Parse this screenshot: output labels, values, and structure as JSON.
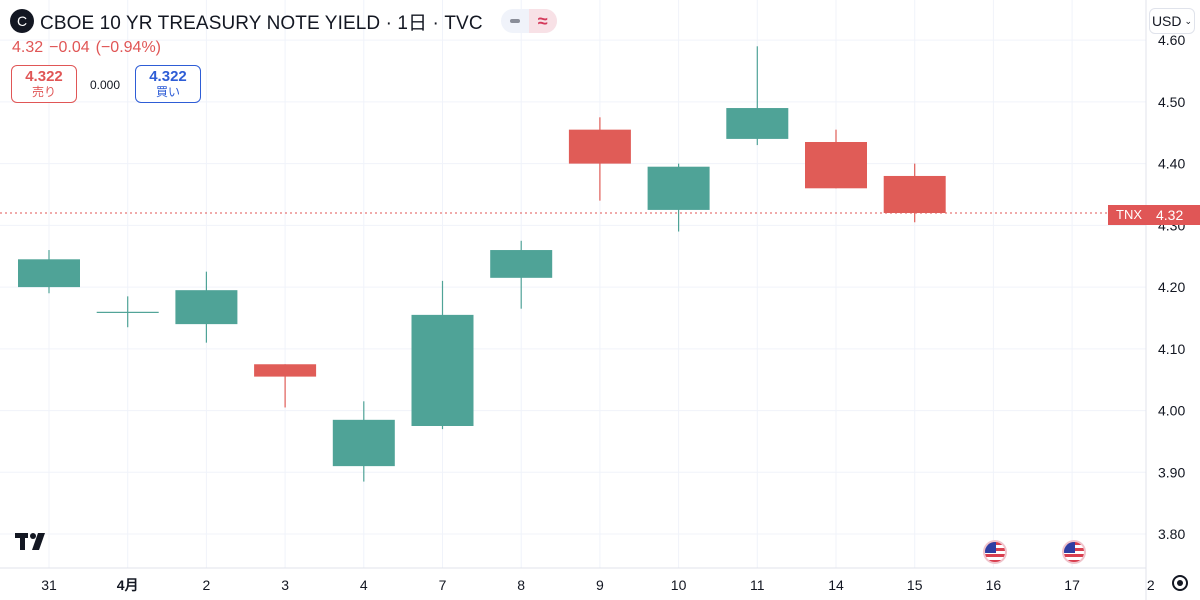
{
  "header": {
    "symbol_icon": "C",
    "title": "CBOE 10 YR TREASURY NOTE YIELD · 1日 · TVC",
    "change_last": "4.32",
    "change_abs": "−0.04",
    "change_pct": "(−0.94%)"
  },
  "trade": {
    "sell_value": "4.322",
    "sell_label": "売り",
    "spread": "0.000",
    "buy_value": "4.322",
    "buy_label": "買い"
  },
  "currency": {
    "label": "USD"
  },
  "price_tag": {
    "symbol": "TNX",
    "price": "4.32"
  },
  "icons": {
    "mode_minus": "minus-icon",
    "mode_approx": "≈",
    "logo": "tradingview-logo",
    "events": "us-flag-icon",
    "settings": "gear-icon",
    "currency_menu": "chevron-down-icon"
  },
  "colors": {
    "up": "#4fa397",
    "down": "#e05c57",
    "last_line": "#e05656"
  },
  "chart_data": {
    "type": "candlestick",
    "x_labels": [
      "31",
      "4月",
      "2",
      "3",
      "4",
      "7",
      "8",
      "9",
      "10",
      "11",
      "14",
      "15",
      "16",
      "17",
      "2"
    ],
    "y_ticks": [
      "4.60",
      "4.50",
      "4.40",
      "4.30",
      "4.20",
      "4.10",
      "4.00",
      "3.90",
      "3.80"
    ],
    "ylim": [
      3.745,
      4.665
    ],
    "last_price": 4.32,
    "candles": [
      {
        "x": "31",
        "open": 4.2,
        "high": 4.26,
        "low": 4.19,
        "close": 4.245
      },
      {
        "x": "4月",
        "open": 4.16,
        "high": 4.185,
        "low": 4.135,
        "close": 4.16
      },
      {
        "x": "2",
        "open": 4.14,
        "high": 4.225,
        "low": 4.11,
        "close": 4.195
      },
      {
        "x": "3",
        "open": 4.075,
        "high": 4.075,
        "low": 4.005,
        "close": 4.055
      },
      {
        "x": "4",
        "open": 3.91,
        "high": 4.015,
        "low": 3.885,
        "close": 3.985
      },
      {
        "x": "7",
        "open": 3.975,
        "high": 4.21,
        "low": 3.97,
        "close": 4.155
      },
      {
        "x": "8",
        "open": 4.215,
        "high": 4.275,
        "low": 4.165,
        "close": 4.26
      },
      {
        "x": "9",
        "open": 4.455,
        "high": 4.475,
        "low": 4.34,
        "close": 4.4
      },
      {
        "x": "10",
        "open": 4.325,
        "high": 4.4,
        "low": 4.29,
        "close": 4.395
      },
      {
        "x": "11",
        "open": 4.44,
        "high": 4.59,
        "low": 4.43,
        "close": 4.49
      },
      {
        "x": "14",
        "open": 4.435,
        "high": 4.455,
        "low": 4.36,
        "close": 4.36
      },
      {
        "x": "15",
        "open": 4.38,
        "high": 4.4,
        "low": 4.305,
        "close": 4.32
      }
    ],
    "event_markers_at": [
      "16",
      "17"
    ],
    "grid": true
  }
}
